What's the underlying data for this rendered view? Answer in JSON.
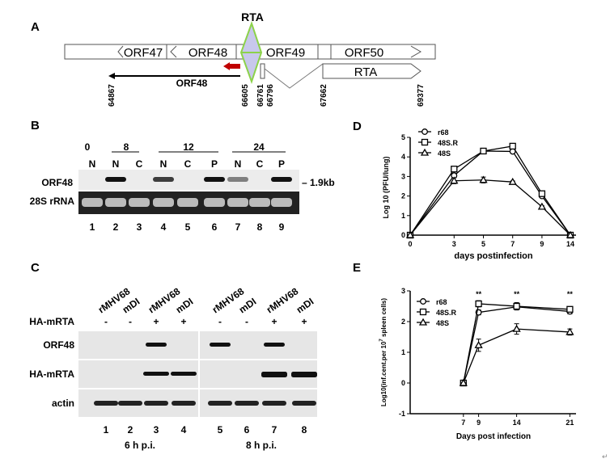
{
  "panel_a": {
    "letter": "A",
    "rta_label": "RTA",
    "orfs": [
      "ORF47",
      "ORF48",
      "ORF49",
      "ORF50"
    ],
    "transcript_label": "ORF48",
    "rta_transcript_label": "RTA",
    "coordinates": [
      "64867",
      "66605",
      "66761",
      "66796",
      "67662",
      "69377"
    ],
    "colors": {
      "diamond_fill": "#c8c8ec",
      "diamond_stroke": "#8cd24a",
      "arrow": "#c00000"
    }
  },
  "panel_b": {
    "letter": "B",
    "time_labels": [
      "0",
      "8",
      "12",
      "24"
    ],
    "fraction_labels": [
      "N",
      "N",
      "C",
      "N",
      "C",
      "P",
      "N",
      "C",
      "P"
    ],
    "row_labels": [
      "ORF48",
      "28S rRNA"
    ],
    "size_marker": "– 1.9kb",
    "lanes": [
      "1",
      "2",
      "3",
      "4",
      "5",
      "6",
      "7",
      "8",
      "9"
    ],
    "orf48_band_intensity": [
      0,
      1,
      0,
      0.8,
      0,
      1,
      0.5,
      0,
      1
    ]
  },
  "panel_c": {
    "letter": "C",
    "virus_labels": [
      "rMHV68",
      "mDI",
      "rMHV68",
      "mDI",
      "rMHV68",
      "mDI",
      "rMHV68",
      "mDI"
    ],
    "ha_row_label": "HA-mRTA",
    "ha_signs": [
      "-",
      "-",
      "+",
      "+",
      "-",
      "-",
      "+",
      "+"
    ],
    "blot_labels": [
      "ORF48",
      "HA-mRTA",
      "actin"
    ],
    "lanes": [
      "1",
      "2",
      "3",
      "4",
      "5",
      "6",
      "7",
      "8"
    ],
    "time_labels": [
      "6 h p.i.",
      "8 h p.i."
    ],
    "orf48_band": [
      0,
      0,
      1,
      0,
      1,
      0,
      1,
      0
    ],
    "ha_band": [
      0,
      0,
      1,
      1,
      0,
      0,
      1.4,
      1.4
    ]
  },
  "corner_mark": "↵",
  "chart_data": [
    {
      "panel": "D",
      "type": "line",
      "xlabel": "days postinfection",
      "ylabel": "Log 10 (PFU/lung)",
      "x": [
        0,
        3,
        5,
        7,
        9,
        14
      ],
      "xticks": [
        "0",
        "3",
        "5",
        "7",
        "9",
        "14"
      ],
      "yticks": [
        "0",
        "1",
        "2",
        "3",
        "4",
        "5"
      ],
      "ylim": [
        0,
        5
      ],
      "legend": "top-left",
      "series": [
        {
          "name": "r68",
          "marker": "circle",
          "values": [
            0,
            3.05,
            4.3,
            4.28,
            2.0,
            0
          ]
        },
        {
          "name": "48S.R",
          "marker": "square",
          "values": [
            0,
            3.38,
            4.3,
            4.55,
            2.12,
            0
          ]
        },
        {
          "name": "48S",
          "marker": "triangle",
          "values": [
            0,
            2.78,
            2.82,
            2.72,
            1.45,
            0
          ],
          "errors": [
            0,
            0.15,
            0.15,
            0.05,
            0.05,
            0
          ]
        }
      ]
    },
    {
      "panel": "E",
      "type": "line",
      "xlabel": "Days post infection",
      "ylabel": "Log10(inf.cent.per 10",
      "ylabel_sup": "7",
      "ylabel_tail": " spleen cells)",
      "x": [
        7,
        9,
        14,
        21
      ],
      "xticks": [
        "7",
        "9",
        "14",
        "21"
      ],
      "yticks": [
        "-1",
        "0",
        "1",
        "2",
        "3"
      ],
      "ylim": [
        -1,
        3
      ],
      "legend": "top-left",
      "annotations": [
        "**",
        "**",
        "**"
      ],
      "series": [
        {
          "name": "r68",
          "marker": "circle",
          "values": [
            0,
            2.3,
            2.48,
            2.33
          ],
          "errors": [
            0,
            0.08,
            0.1,
            0.08
          ]
        },
        {
          "name": "48S.R",
          "marker": "square",
          "values": [
            0,
            2.58,
            2.5,
            2.4
          ],
          "errors": [
            0,
            0.1,
            0.12,
            0.06
          ]
        },
        {
          "name": "48S",
          "marker": "triangle",
          "values": [
            0,
            1.23,
            1.76,
            1.66
          ],
          "errors": [
            0,
            0.2,
            0.17,
            0.1
          ]
        }
      ]
    }
  ]
}
